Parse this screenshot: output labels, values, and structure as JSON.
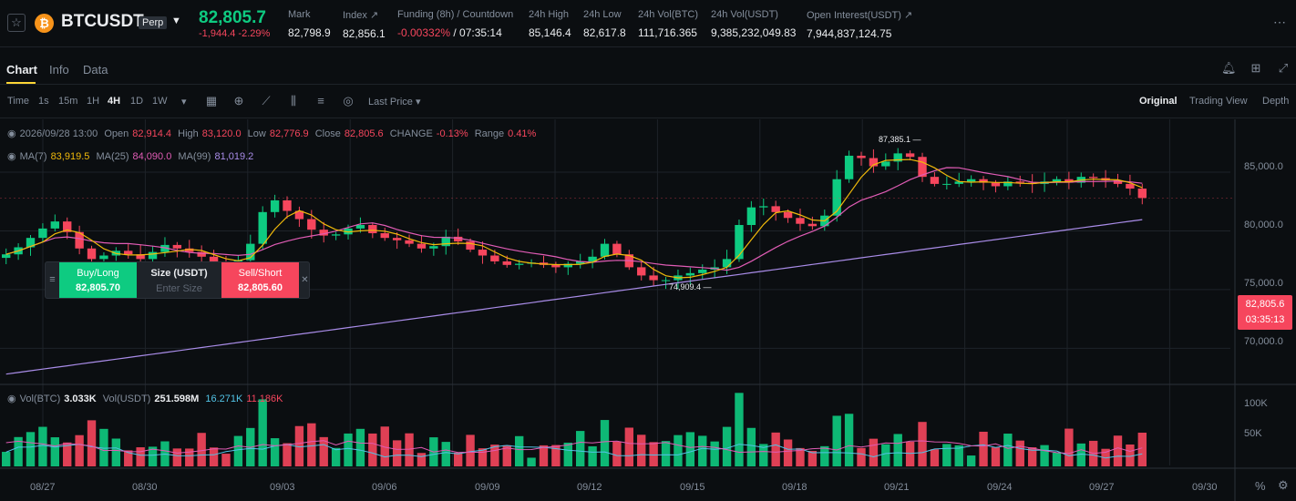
{
  "header": {
    "symbol": "BTCUSDT",
    "badge": "Perp",
    "last_price": "82,805.7",
    "change": "-1,944.4 -2.29%",
    "stats": [
      {
        "label": "Mark",
        "value": "82,798.9"
      },
      {
        "label": "Index ↗",
        "value": "82,856.1"
      },
      {
        "label": "Funding (8h) / Countdown",
        "value_red": "-0.00332%",
        "value": " / 07:35:14"
      },
      {
        "label": "24h High",
        "value": "85,146.4"
      },
      {
        "label": "24h Low",
        "value": "82,617.8"
      },
      {
        "label": "24h Vol(BTC)",
        "value": "111,716.365"
      },
      {
        "label": "24h Vol(USDT)",
        "value": "9,385,232,049.83"
      },
      {
        "label": "Open Interest(USDT) ↗",
        "value": "7,944,837,124.75"
      }
    ],
    "colors": {
      "up": "#0ecb81",
      "down": "#f6465d",
      "accent": "#fcd535",
      "coin": "#f7931a"
    }
  },
  "tabs": [
    "Chart",
    "Info",
    "Data"
  ],
  "toolbar": {
    "time_label": "Time",
    "intervals": [
      "1s",
      "15m",
      "1H",
      "4H",
      "1D",
      "1W"
    ],
    "active_interval": "4H",
    "price_type": "Last Price",
    "views": [
      "Original",
      "Trading View",
      "Depth"
    ],
    "active_view": "Original"
  },
  "ohlc": {
    "date": "2026/09/28 13:00",
    "open_label": "Open",
    "open": "82,914.4",
    "high_label": "High",
    "high": "83,120.0",
    "low_label": "Low",
    "low": "82,776.9",
    "close_label": "Close",
    "close": "82,805.6",
    "change_label": "CHANGE",
    "change": "-0.13%",
    "range_label": "Range",
    "range": "0.41%"
  },
  "ma": {
    "ma7_label": "MA(7)",
    "ma7": "83,919.5",
    "ma25_label": "MA(25)",
    "ma25": "84,090.0",
    "ma99_label": "MA(99)",
    "ma99": "81,019.2"
  },
  "vol": {
    "btc_label": "Vol(BTC)",
    "btc": "3.033K",
    "usdt_label": "Vol(USDT)",
    "usdt": "251.598M",
    "v1": "16.271K",
    "v2": "11.186K"
  },
  "price_axis": [
    "85,000.0",
    "80,000.0",
    "75,000.0",
    "70,000.0"
  ],
  "vol_axis": [
    "100K",
    "50K"
  ],
  "date_axis": [
    "08/27",
    "08/30",
    "09/03",
    "09/06",
    "09/09",
    "09/12",
    "09/15",
    "09/18",
    "09/21",
    "09/24",
    "09/27",
    "09/30"
  ],
  "current_price_tag": {
    "price": "82,805.6",
    "countdown": "03:35:13"
  },
  "markers": {
    "high": "87,385.1",
    "low": "74,909.4"
  },
  "order_panel": {
    "buy_label": "Buy/Long",
    "buy_price": "82,805.70",
    "size_label": "Size (USDT)",
    "size_placeholder": "Enter Size",
    "sell_label": "Sell/Short",
    "sell_price": "82,805.60"
  },
  "footer": {
    "percent": "%"
  },
  "chart_data": {
    "type": "candlestick",
    "y_range": [
      67000,
      89500
    ],
    "x_range": [
      "08/26",
      "09/30"
    ],
    "close_series": [
      78000,
      78600,
      79400,
      80200,
      80800,
      79900,
      78500,
      77600,
      77900,
      78300,
      78000,
      77600,
      78200,
      78800,
      78500,
      78200,
      77800,
      77400,
      77100,
      77500,
      78900,
      81600,
      82600,
      81700,
      81000,
      80100,
      79600,
      79700,
      80200,
      80500,
      79800,
      79400,
      79200,
      78900,
      78500,
      78700,
      79500,
      79100,
      78400,
      77900,
      77400,
      77100,
      77200,
      77300,
      77100,
      76900,
      77200,
      77400,
      77800,
      78900,
      78000,
      76900,
      76200,
      75800,
      75800,
      76200,
      76400,
      76700,
      76900,
      77600,
      80500,
      82000,
      82100,
      81600,
      81100,
      80600,
      80400,
      81300,
      84400,
      86400,
      86200,
      85500,
      85900,
      86600,
      86300,
      84600,
      84000,
      84000,
      84200,
      84400,
      84100,
      83800,
      84200,
      84100,
      84000,
      84200,
      84400,
      84100,
      84600,
      84500,
      84300,
      84000,
      83600,
      82800
    ],
    "volume_peaks": [
      "09/03",
      "09/04",
      "09/12",
      "09/21",
      "09/23"
    ],
    "ma": {
      "ma7": 83919.5,
      "ma25": 84090.0,
      "ma99": 81019.2
    }
  }
}
